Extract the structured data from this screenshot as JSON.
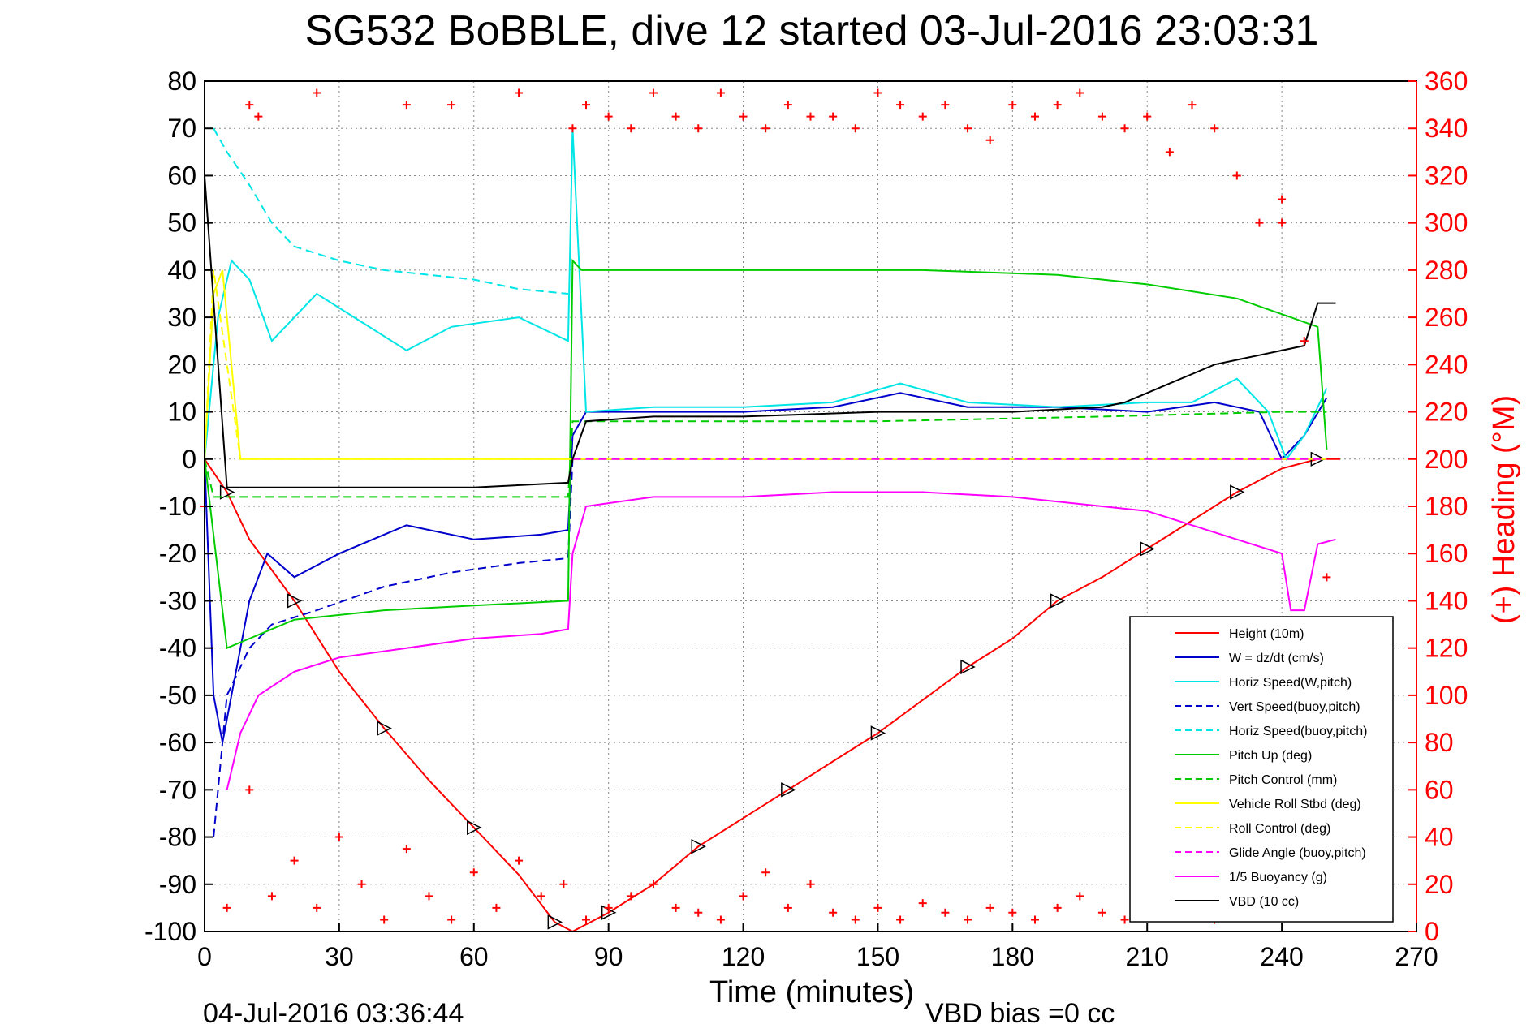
{
  "chart_data": {
    "type": "line",
    "title": "SG532 BoBBLE, dive 12 started 03-Jul-2016 23:03:31",
    "xlabel": "Time (minutes)",
    "ylabel_right": "(+) Heading (°M)",
    "footer_left": "04-Jul-2016 03:36:44",
    "footer_right": "VBD bias =0 cc",
    "xlim": [
      0,
      270
    ],
    "ylim": [
      -100,
      80
    ],
    "ylim_right": [
      0,
      360
    ],
    "x_ticks": [
      0,
      30,
      60,
      90,
      120,
      150,
      180,
      210,
      240,
      270
    ],
    "y_ticks": [
      80,
      70,
      60,
      50,
      40,
      30,
      20,
      10,
      0,
      -10,
      -20,
      -30,
      -40,
      -50,
      -60,
      -70,
      -80,
      -90,
      -100
    ],
    "y_ticks_right": [
      360,
      340,
      320,
      300,
      280,
      260,
      240,
      220,
      200,
      180,
      160,
      140,
      120,
      100,
      80,
      60,
      40,
      20,
      0
    ],
    "grid": true,
    "legend_position": "bottom-right",
    "series": [
      {
        "name": "Height (10m)",
        "color": "#ff0000",
        "style": "solid",
        "x": [
          0,
          5,
          10,
          20,
          30,
          40,
          50,
          60,
          70,
          78,
          82,
          90,
          100,
          110,
          120,
          130,
          140,
          150,
          160,
          170,
          180,
          190,
          200,
          210,
          220,
          230,
          240,
          248,
          253
        ],
        "y": [
          0,
          -7,
          -17,
          -30,
          -45,
          -57,
          -68,
          -78,
          -88,
          -98,
          -100,
          -96,
          -90,
          -82,
          -76,
          -70,
          -64,
          -58,
          -51,
          -44,
          -38,
          -30,
          -25,
          -19,
          -13,
          -7,
          -2,
          0,
          0
        ]
      },
      {
        "name": "W = dz/dt (cm/s)",
        "color": "#0000cc",
        "style": "solid",
        "x": [
          0,
          2,
          4,
          7,
          10,
          14,
          20,
          30,
          45,
          60,
          75,
          81,
          82,
          85,
          100,
          120,
          140,
          155,
          170,
          190,
          210,
          225,
          235,
          240,
          245,
          250
        ],
        "y": [
          0,
          -50,
          -60,
          -45,
          -30,
          -20,
          -25,
          -20,
          -14,
          -17,
          -16,
          -15,
          5,
          10,
          10,
          10,
          11,
          14,
          11,
          11,
          10,
          12,
          10,
          0,
          5,
          13
        ]
      },
      {
        "name": "Horiz Speed(W,pitch)",
        "color": "#00e5e5",
        "style": "solid",
        "x": [
          0,
          3,
          6,
          10,
          15,
          25,
          35,
          45,
          55,
          70,
          81,
          82,
          85,
          100,
          120,
          140,
          155,
          170,
          190,
          210,
          220,
          230,
          237,
          241,
          245,
          250
        ],
        "y": [
          0,
          30,
          42,
          38,
          25,
          35,
          29,
          23,
          28,
          30,
          25,
          70,
          10,
          11,
          11,
          12,
          16,
          12,
          11,
          12,
          12,
          17,
          10,
          0,
          5,
          15
        ]
      },
      {
        "name": "Vert Speed(buoy,pitch)",
        "color": "#0000cc",
        "style": "dashed",
        "x": [
          2,
          5,
          10,
          15,
          25,
          40,
          55,
          70,
          81,
          82,
          100,
          150,
          200,
          240,
          250
        ],
        "y": [
          -80,
          -50,
          -40,
          -35,
          -32,
          -27,
          -24,
          -22,
          -21,
          0,
          0,
          0,
          0,
          0,
          0
        ]
      },
      {
        "name": "Horiz Speed(buoy,pitch)",
        "color": "#00e5e5",
        "style": "dashed",
        "x": [
          2,
          5,
          10,
          15,
          20,
          30,
          40,
          50,
          60,
          70,
          81
        ],
        "y": [
          70,
          65,
          58,
          50,
          45,
          42,
          40,
          39,
          38,
          36,
          35
        ]
      },
      {
        "name": "Pitch Up (deg)",
        "color": "#00cc00",
        "style": "solid",
        "x": [
          0,
          5,
          10,
          20,
          40,
          60,
          81,
          82,
          84,
          100,
          130,
          160,
          190,
          210,
          230,
          242,
          248,
          250
        ],
        "y": [
          0,
          -40,
          -38,
          -34,
          -32,
          -31,
          -30,
          42,
          40,
          40,
          40,
          40,
          39,
          37,
          34,
          30,
          28,
          2
        ]
      },
      {
        "name": "Pitch Control (mm)",
        "color": "#00cc00",
        "style": "dashed",
        "x": [
          0,
          2,
          10,
          30,
          60,
          81,
          82,
          100,
          150,
          200,
          240,
          250
        ],
        "y": [
          0,
          -8,
          -8,
          -8,
          -8,
          -8,
          8,
          8,
          8,
          9,
          10,
          10
        ]
      },
      {
        "name": "Vehicle Roll Stbd (deg)",
        "color": "#ffff00",
        "style": "solid",
        "x": [
          0,
          2,
          4,
          8,
          12,
          20,
          40,
          60,
          81,
          82,
          120,
          160,
          200,
          240,
          250
        ],
        "y": [
          0,
          35,
          40,
          0,
          0,
          0,
          0,
          0,
          0,
          0,
          0,
          0,
          0,
          0,
          0
        ]
      },
      {
        "name": "Roll Control (deg)",
        "color": "#ffff00",
        "style": "dashed",
        "x": [
          0,
          2,
          8,
          40,
          81,
          82,
          120,
          160,
          200,
          240,
          250
        ],
        "y": [
          0,
          40,
          0,
          0,
          0,
          0,
          0,
          0,
          0,
          0,
          0
        ]
      },
      {
        "name": "Glide Angle (buoy,pitch)",
        "color": "#ff00ff",
        "style": "dashed",
        "x": [
          82,
          100,
          150,
          200,
          240,
          250
        ],
        "y": [
          0,
          0,
          0,
          0,
          0,
          0
        ]
      },
      {
        "name": "1/5 Buoyancy (g)",
        "color": "#ff00ff",
        "style": "solid",
        "x": [
          5,
          8,
          12,
          20,
          30,
          45,
          60,
          75,
          81,
          82,
          85,
          100,
          120,
          140,
          160,
          180,
          200,
          210,
          220,
          230,
          240,
          242,
          245,
          248,
          252
        ],
        "y": [
          -70,
          -58,
          -50,
          -45,
          -42,
          -40,
          -38,
          -37,
          -36,
          -20,
          -10,
          -8,
          -8,
          -7,
          -7,
          -8,
          -10,
          -11,
          -14,
          -17,
          -20,
          -32,
          -32,
          -18,
          -17
        ]
      },
      {
        "name": "VBD (10 cc)",
        "color": "#000000",
        "style": "solid",
        "x": [
          0,
          5,
          10,
          30,
          60,
          81,
          82,
          85,
          100,
          120,
          150,
          180,
          200,
          205,
          210,
          215,
          220,
          225,
          230,
          235,
          240,
          245,
          248,
          252
        ],
        "y": [
          60,
          -6,
          -6,
          -6,
          -6,
          -5,
          0,
          8,
          9,
          9,
          10,
          10,
          11,
          12,
          14,
          16,
          18,
          20,
          21,
          22,
          23,
          24,
          33,
          33
        ]
      },
      {
        "name": "(+) Heading",
        "color": "#ff0000",
        "style": "markers",
        "axis": "right",
        "x": [
          0,
          5,
          10,
          15,
          20,
          25,
          30,
          35,
          40,
          45,
          50,
          55,
          60,
          65,
          70,
          75,
          80,
          85,
          90,
          95,
          100,
          105,
          110,
          115,
          120,
          125,
          130,
          135,
          140,
          145,
          150,
          155,
          160,
          165,
          170,
          175,
          180,
          185,
          190,
          195,
          200,
          205,
          210,
          215,
          220,
          225,
          230,
          235,
          240,
          245,
          250
        ],
        "y": [
          180,
          10,
          60,
          15,
          30,
          10,
          40,
          20,
          5,
          35,
          15,
          5,
          25,
          10,
          30,
          15,
          20,
          5,
          10,
          15,
          20,
          10,
          8,
          5,
          15,
          25,
          10,
          20,
          8,
          5,
          10,
          5,
          12,
          8,
          5,
          10,
          8,
          5,
          10,
          15,
          8,
          5,
          40,
          15,
          10,
          5,
          15,
          10,
          300,
          250,
          150
        ]
      },
      {
        "name": "(+) Heading top",
        "color": "#ff0000",
        "style": "markers",
        "axis": "right",
        "x": [
          10,
          12,
          25,
          45,
          55,
          70,
          82,
          85,
          90,
          95,
          100,
          105,
          110,
          115,
          120,
          125,
          130,
          135,
          140,
          145,
          150,
          155,
          160,
          165,
          170,
          175,
          180,
          185,
          190,
          195,
          200,
          205,
          210,
          215,
          220,
          225,
          230,
          235,
          240
        ],
        "y": [
          350,
          345,
          355,
          350,
          350,
          355,
          340,
          350,
          345,
          340,
          355,
          345,
          340,
          355,
          345,
          340,
          350,
          345,
          345,
          340,
          355,
          350,
          345,
          350,
          340,
          335,
          350,
          345,
          350,
          355,
          345,
          340,
          345,
          330,
          350,
          340,
          320,
          300,
          310
        ]
      }
    ]
  },
  "legend": {
    "entries": [
      {
        "label": "Height (10m)",
        "color": "#ff0000",
        "dash": "solid"
      },
      {
        "label": "W = dz/dt (cm/s)",
        "color": "#0000cc",
        "dash": "solid"
      },
      {
        "label": "Horiz Speed(W,pitch)",
        "color": "#00e5e5",
        "dash": "solid"
      },
      {
        "label": "Vert Speed(buoy,pitch)",
        "color": "#0000cc",
        "dash": "dashed"
      },
      {
        "label": "Horiz Speed(buoy,pitch)",
        "color": "#00e5e5",
        "dash": "dashed"
      },
      {
        "label": "Pitch Up (deg)",
        "color": "#00cc00",
        "dash": "solid"
      },
      {
        "label": "Pitch Control (mm)",
        "color": "#00cc00",
        "dash": "dashed"
      },
      {
        "label": "Vehicle Roll Stbd (deg)",
        "color": "#ffff00",
        "dash": "solid"
      },
      {
        "label": "Roll Control (deg)",
        "color": "#ffff00",
        "dash": "dashed"
      },
      {
        "label": "Glide Angle (buoy,pitch)",
        "color": "#ff00ff",
        "dash": "dashed"
      },
      {
        "label": "1/5 Buoyancy (g)",
        "color": "#ff00ff",
        "dash": "solid"
      },
      {
        "label": "VBD (10 cc)",
        "color": "#000000",
        "dash": "solid"
      }
    ]
  }
}
